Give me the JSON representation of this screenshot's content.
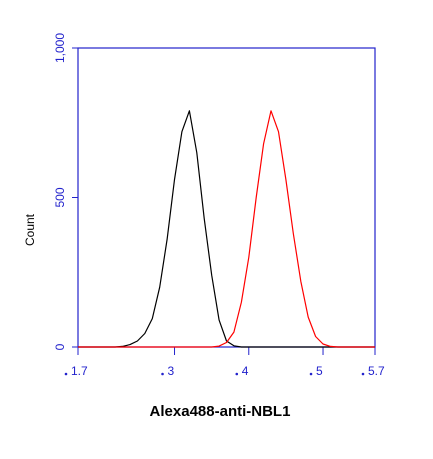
{
  "chart_data": {
    "type": "line",
    "title": "Alexa488-anti-NBL1",
    "ylabel": "Count",
    "x": [
      1.7,
      1.8,
      1.9,
      2.0,
      2.1,
      2.2,
      2.3,
      2.4,
      2.5,
      2.6,
      2.7,
      2.8,
      2.9,
      3.0,
      3.1,
      3.2,
      3.3,
      3.4,
      3.5,
      3.6,
      3.7,
      3.8,
      3.9,
      4.0,
      4.1,
      4.2,
      4.3,
      4.4,
      4.5,
      4.6,
      4.7,
      4.8,
      4.9,
      5.0,
      5.1,
      5.2,
      5.3,
      5.4,
      5.5,
      5.6,
      5.7
    ],
    "series": [
      {
        "color": "#000000",
        "values": [
          0,
          0,
          0,
          0,
          0,
          0,
          2,
          8,
          20,
          45,
          95,
          200,
          360,
          560,
          720,
          790,
          650,
          430,
          240,
          90,
          20,
          4,
          0,
          0,
          0,
          0,
          0,
          0,
          0,
          0,
          0,
          0,
          0,
          0,
          0,
          0,
          0,
          0,
          0,
          0,
          0
        ]
      },
      {
        "color": "#ff0000",
        "values": [
          0,
          0,
          0,
          0,
          0,
          0,
          0,
          0,
          0,
          0,
          0,
          0,
          0,
          0,
          0,
          0,
          0,
          0,
          0,
          3,
          15,
          50,
          150,
          300,
          500,
          680,
          790,
          720,
          560,
          380,
          220,
          100,
          35,
          10,
          2,
          0,
          0,
          0,
          0,
          0,
          0
        ]
      }
    ],
    "xlim": [
      1.7,
      5.7
    ],
    "xticks": [
      1.7,
      3,
      4,
      5,
      5.7
    ],
    "ylim": [
      0,
      1000
    ],
    "yticks": [
      0,
      500,
      {
        "value": 1000,
        "label": "1,000"
      }
    ],
    "axis_color": "#2222cc"
  }
}
